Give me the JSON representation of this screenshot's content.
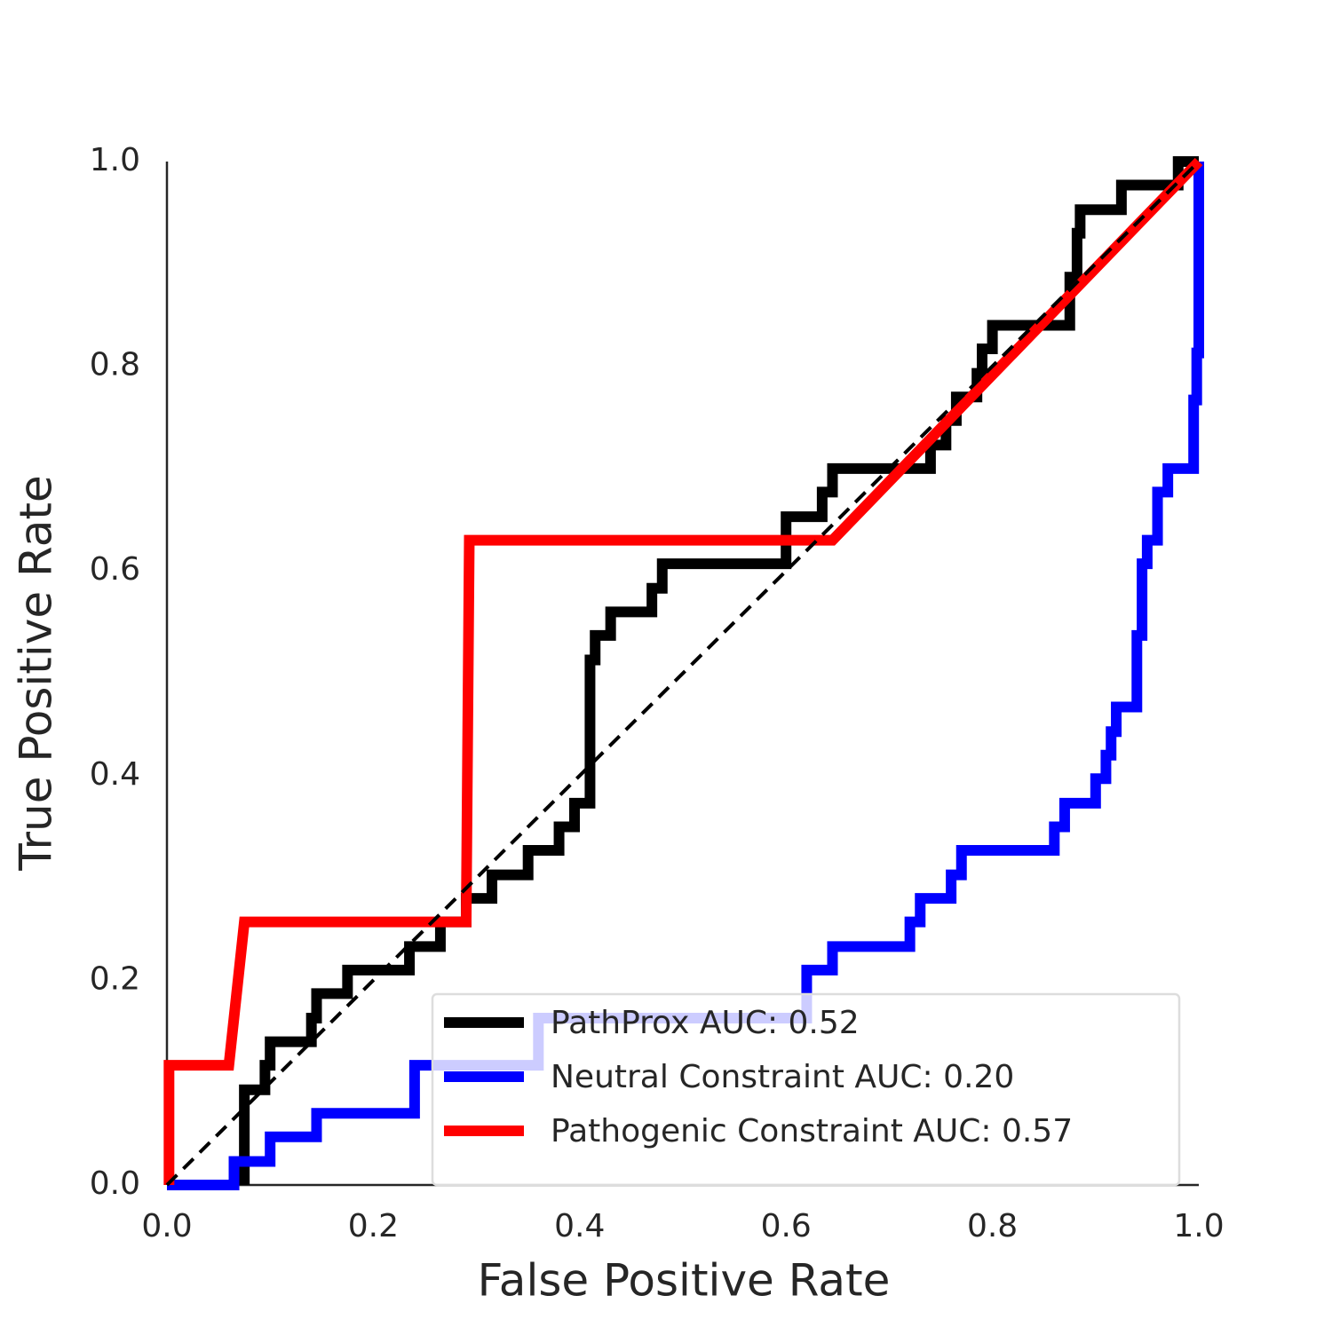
{
  "chart_data": {
    "type": "line",
    "xlabel": "False Positive Rate",
    "ylabel": "True Positive Rate",
    "xlim": [
      0,
      1
    ],
    "ylim": [
      0,
      1
    ],
    "xticks": [
      {
        "value": 0,
        "label": "0.0"
      },
      0.2,
      0.4,
      0.6,
      0.8,
      {
        "value": 1,
        "label": "1.0"
      }
    ],
    "yticks": [
      {
        "value": 0,
        "label": "0.0"
      },
      0.2,
      0.4,
      0.6,
      0.8,
      {
        "value": 1,
        "label": "1.0"
      }
    ],
    "grid": false,
    "legend": "lower right",
    "reference_line": {
      "color": "#000000",
      "x": [
        0,
        1
      ],
      "y": [
        0,
        1
      ]
    },
    "series": [
      {
        "name": "PathProx AUC:  0.52",
        "color": "#000000",
        "x": [
          0.075,
          0.075,
          0.095,
          0.095,
          0.1,
          0.1,
          0.14,
          0.14,
          0.145,
          0.145,
          0.175,
          0.175,
          0.235,
          0.235,
          0.265,
          0.265,
          0.29,
          0.29,
          0.315,
          0.315,
          0.35,
          0.35,
          0.38,
          0.38,
          0.395,
          0.395,
          0.41,
          0.41,
          0.41,
          0.415,
          0.415,
          0.43,
          0.43,
          0.47,
          0.47,
          0.48,
          0.48,
          0.6,
          0.6,
          0.6,
          0.635,
          0.635,
          0.645,
          0.645,
          0.74,
          0.74,
          0.755,
          0.755,
          0.765,
          0.765,
          0.785,
          0.785,
          0.79,
          0.79,
          0.8,
          0.8,
          0.875,
          0.875,
          0.875,
          0.882,
          0.882,
          0.885,
          0.885,
          0.925,
          0.925,
          0.98,
          0.98,
          1
        ],
        "y": [
          0,
          0.093,
          0.093,
          0.117,
          0.117,
          0.14,
          0.14,
          0.163,
          0.163,
          0.187,
          0.187,
          0.21,
          0.21,
          0.233,
          0.233,
          0.257,
          0.257,
          0.28,
          0.28,
          0.303,
          0.303,
          0.327,
          0.327,
          0.35,
          0.35,
          0.373,
          0.373,
          0.397,
          0.513,
          0.513,
          0.537,
          0.537,
          0.56,
          0.56,
          0.583,
          0.583,
          0.607,
          0.607,
          0.63,
          0.653,
          0.653,
          0.677,
          0.677,
          0.7,
          0.7,
          0.723,
          0.723,
          0.747,
          0.747,
          0.77,
          0.77,
          0.793,
          0.793,
          0.817,
          0.817,
          0.84,
          0.84,
          0.863,
          0.887,
          0.887,
          0.93,
          0.93,
          0.953,
          0.953,
          0.977,
          0.977,
          1,
          1
        ]
      },
      {
        "name": "Neutral Constraint AUC:  0.20",
        "color": "#0000ff",
        "x": [
          0,
          0.065,
          0.065,
          0.1,
          0.1,
          0.145,
          0.145,
          0.24,
          0.24,
          0.36,
          0.36,
          0.62,
          0.62,
          0.645,
          0.645,
          0.72,
          0.72,
          0.73,
          0.73,
          0.76,
          0.76,
          0.77,
          0.77,
          0.86,
          0.86,
          0.87,
          0.87,
          0.9,
          0.9,
          0.91,
          0.91,
          0.915,
          0.915,
          0.92,
          0.92,
          0.94,
          0.94,
          0.945,
          0.945,
          0.95,
          0.95,
          0.96,
          0.96,
          0.97,
          0.97,
          0.995,
          0.995,
          0.998,
          0.998,
          1,
          1
        ],
        "y": [
          0,
          0,
          0.023,
          0.023,
          0.047,
          0.047,
          0.07,
          0.07,
          0.117,
          0.117,
          0.163,
          0.163,
          0.21,
          0.21,
          0.233,
          0.233,
          0.257,
          0.257,
          0.28,
          0.28,
          0.303,
          0.303,
          0.327,
          0.327,
          0.35,
          0.35,
          0.373,
          0.373,
          0.397,
          0.397,
          0.42,
          0.42,
          0.443,
          0.443,
          0.467,
          0.467,
          0.537,
          0.537,
          0.607,
          0.607,
          0.63,
          0.63,
          0.677,
          0.677,
          0.7,
          0.7,
          0.767,
          0.767,
          0.813,
          0.813,
          1
        ]
      },
      {
        "name": "Pathogenic Constraint AUC:  0.57",
        "color": "#ff0000",
        "x": [
          0.002,
          0.002,
          0.06,
          0.075,
          0.29,
          0.293,
          0.645,
          1
        ],
        "y": [
          0,
          0.117,
          0.117,
          0.257,
          0.257,
          0.63,
          0.63,
          1
        ]
      }
    ]
  }
}
